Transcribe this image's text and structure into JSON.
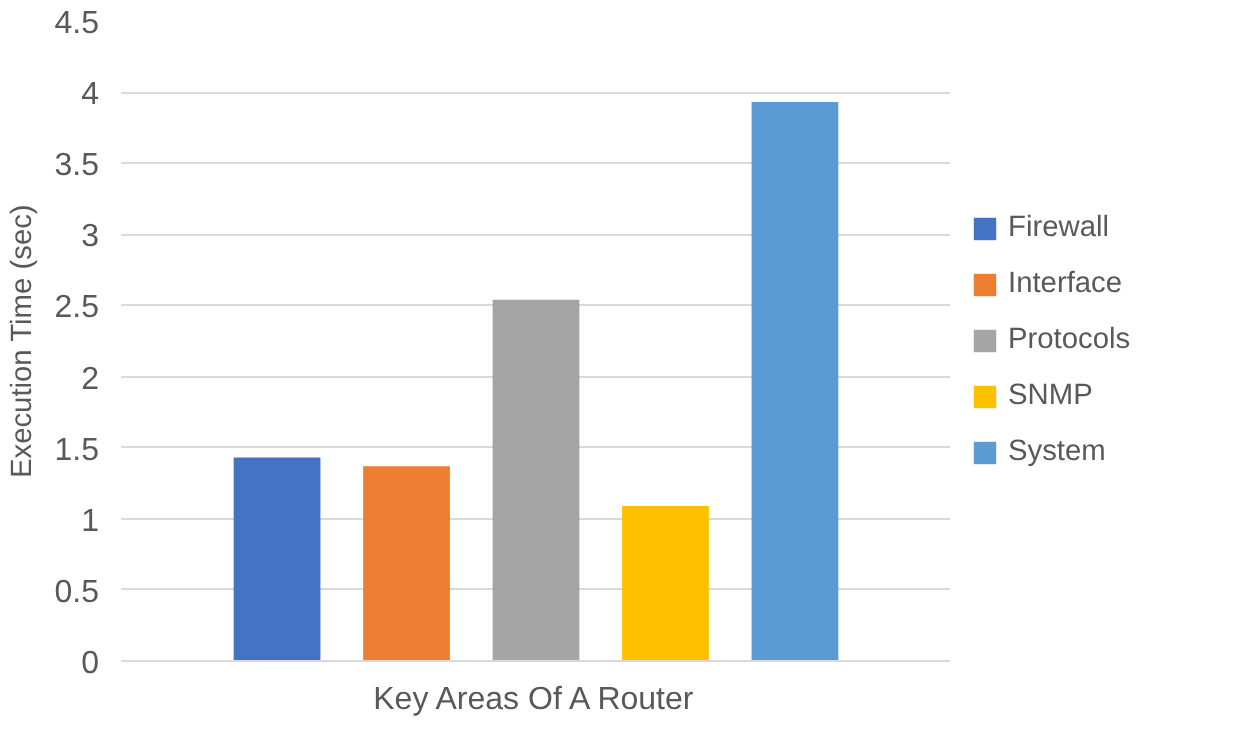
{
  "chart_data": {
    "type": "bar",
    "categories": [
      "Key Areas Of A Router"
    ],
    "ylabel": "Execution Time (sec)",
    "ylim": [
      0,
      4.5
    ],
    "yticks": [
      0,
      0.5,
      1,
      1.5,
      2,
      2.5,
      3,
      3.5,
      4,
      4.5
    ],
    "grid": "y",
    "legend": "right",
    "series": [
      {
        "name": "Firewall",
        "color": "#4472c4",
        "values": [
          1.43
        ]
      },
      {
        "name": "Interface",
        "color": "#ed7d31",
        "values": [
          1.37
        ]
      },
      {
        "name": "Protocols",
        "color": "#a5a5a5",
        "values": [
          2.54
        ]
      },
      {
        "name": "SNMP",
        "color": "#ffc000",
        "values": [
          1.09
        ]
      },
      {
        "name": "System",
        "color": "#5b9bd5",
        "values": [
          3.93
        ]
      }
    ]
  }
}
